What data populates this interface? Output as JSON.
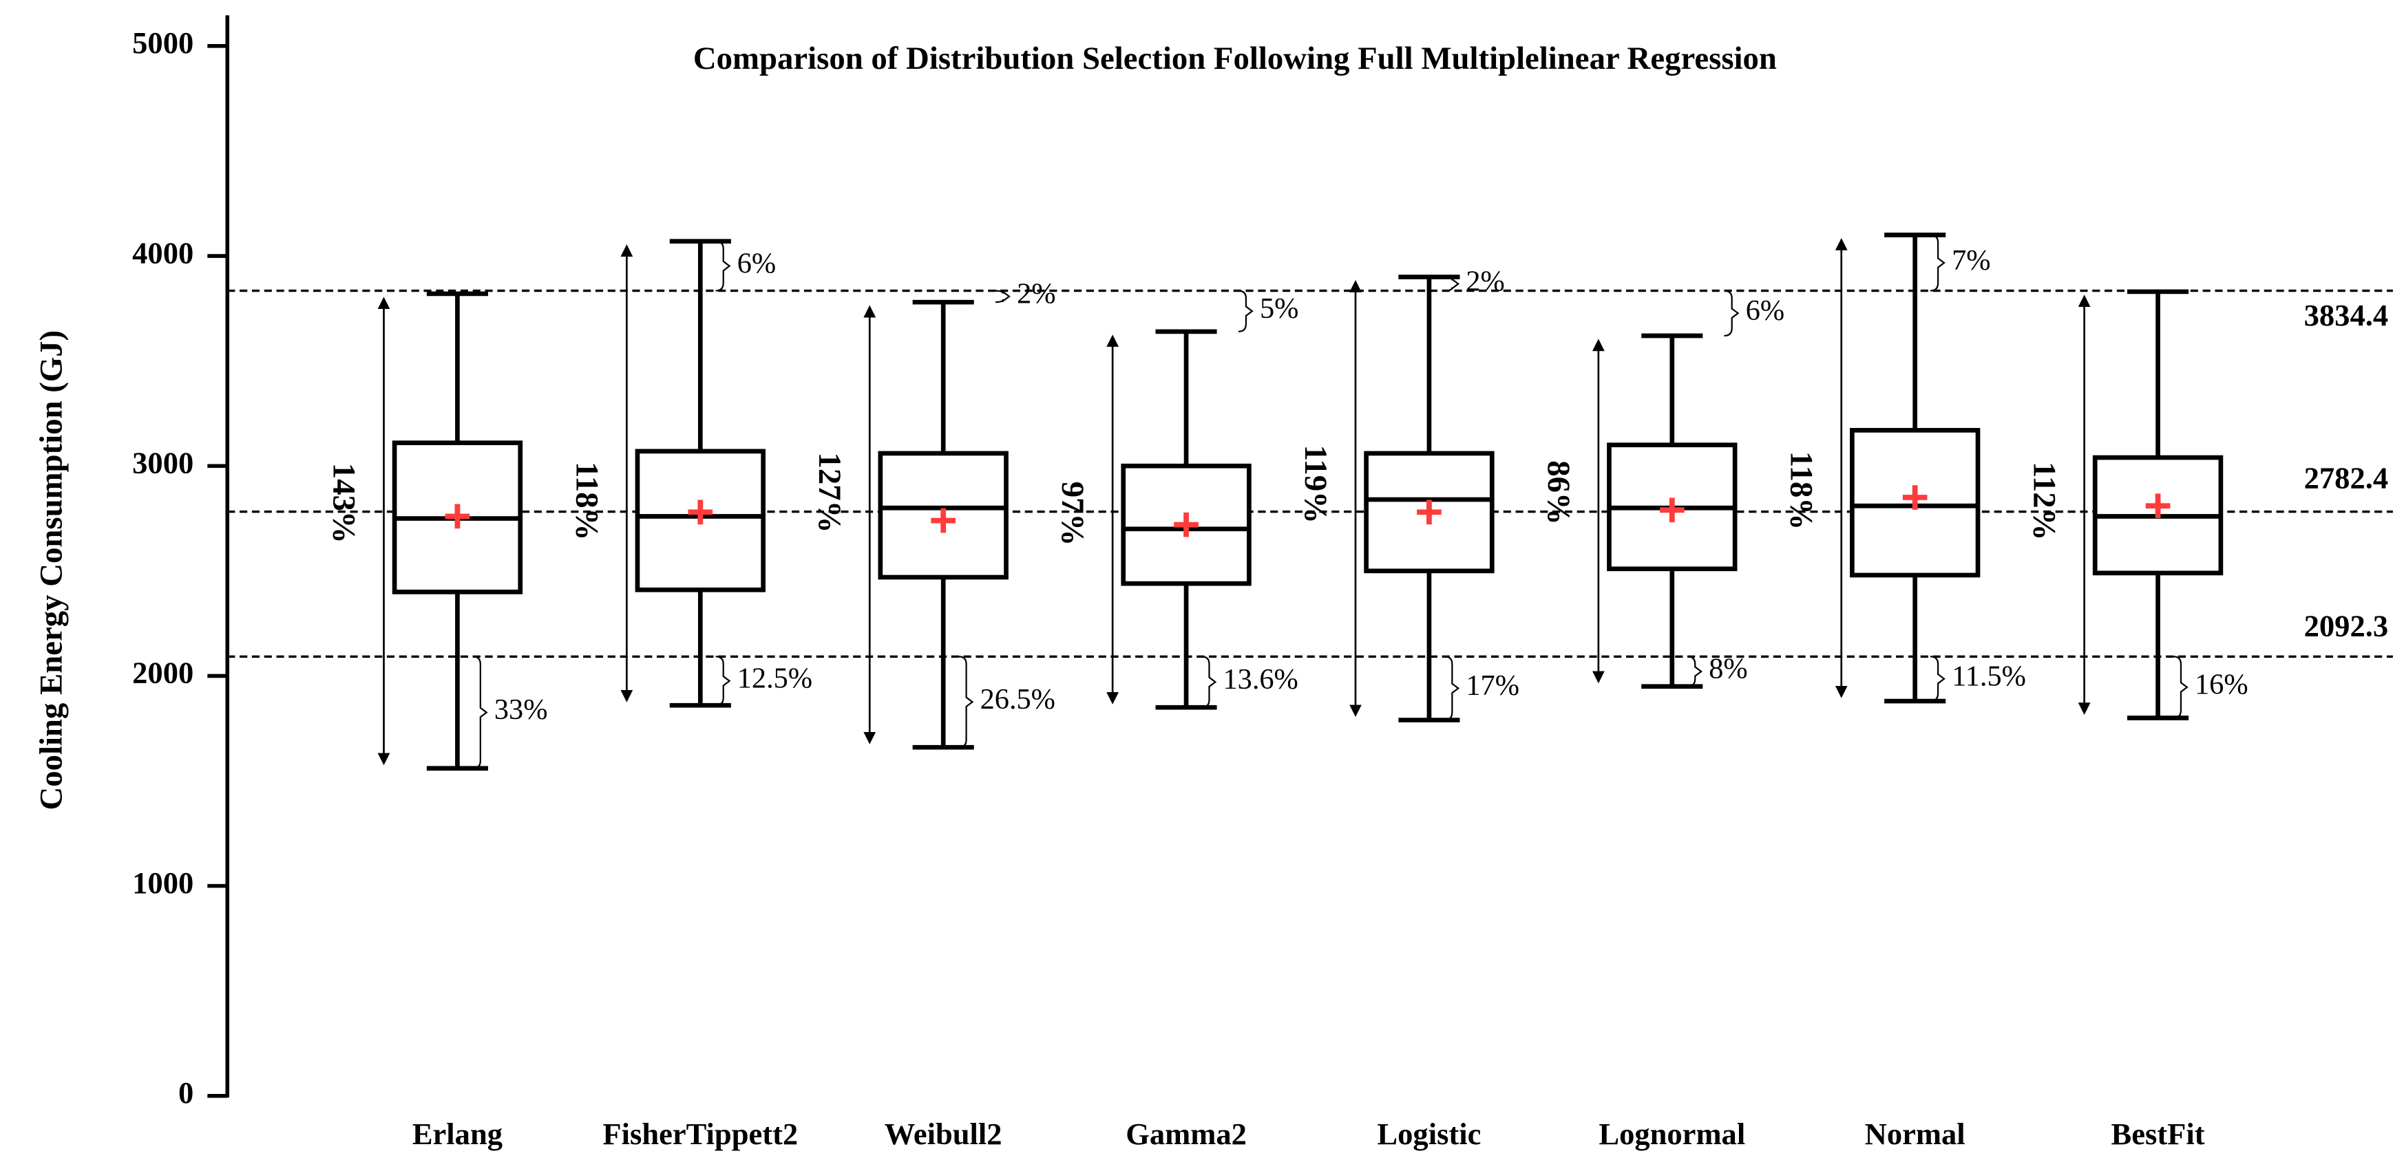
{
  "chart_data": {
    "type": "box",
    "title": "Comparison of Distribution Selection Following Full Multiplelinear Regression",
    "y_label": "Cooling Energy Consumption (GJ)",
    "categories": [
      "Erlang",
      "FisherTippett2",
      "Weibull2",
      "Gamma2",
      "Logistic",
      "Lognormal",
      "Normal",
      "BestFit"
    ],
    "min": [
      1560,
      1860,
      1660,
      1850,
      1790,
      1950,
      1880,
      1800
    ],
    "q1": [
      2400,
      2410,
      2470,
      2440,
      2500,
      2510,
      2480,
      2490
    ],
    "median": [
      2750,
      2760,
      2800,
      2700,
      2840,
      2800,
      2810,
      2760
    ],
    "q3": [
      3110,
      3070,
      3060,
      3000,
      3060,
      3100,
      3170,
      3040
    ],
    "max": [
      3820,
      4070,
      3780,
      3640,
      3900,
      3620,
      4100,
      3830
    ],
    "mean": [
      2760,
      2780,
      2740,
      2720,
      2780,
      2790,
      2850,
      2810
    ],
    "box_color": "#000000",
    "mean_color": "#ff3b3b",
    "range_labels": [
      "143%",
      "118%",
      "127%",
      "97%",
      "119%",
      "86%",
      "118%",
      "112%"
    ],
    "top_labels": [
      null,
      "6%",
      "2%",
      "5%",
      "2%",
      "6%",
      "7%",
      null
    ],
    "bottom_labels": [
      "33%",
      "12.5%",
      "26.5%",
      "13.6%",
      "17%",
      "8%",
      "11.5%",
      "16%"
    ],
    "reference_lines": [
      3834.4,
      2782.4,
      2092.3
    ],
    "ylim": [
      0,
      5000
    ],
    "yticks": [
      0,
      1000,
      2000,
      3000,
      4000,
      5000
    ]
  }
}
